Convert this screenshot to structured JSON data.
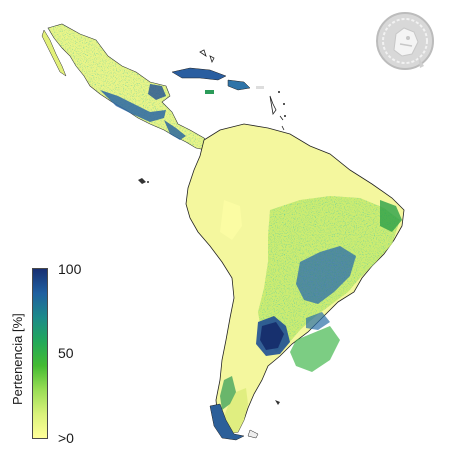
{
  "legend": {
    "title": "Pertenencia [%]",
    "ticks": {
      "max": "100",
      "mid": "50",
      "min": ">0"
    },
    "colors": [
      "#ffff99",
      "#d9f27a",
      "#99dd55",
      "#44bb33",
      "#22a85a",
      "#1c8a8a",
      "#1f5fa0",
      "#172f72"
    ]
  },
  "map": {
    "region": "Latin America",
    "land_color_low": "#f3f7a0",
    "high_color": "#1b3f85"
  },
  "logo": {
    "icon": "institution-seal-icon"
  }
}
